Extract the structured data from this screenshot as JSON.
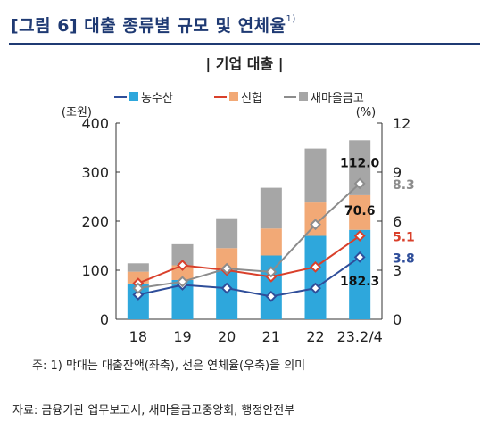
{
  "figure": {
    "title": "[그림 6] 대출 종류별 규모 및 연체율",
    "title_footnote": "1)",
    "note": "주:  1) 막대는 대출잔액(좌축), 선은 연체율(우축)을 의미",
    "source": "자료: 금융기관 업무보고서, 새마을금고중앙회, 행정안전부"
  },
  "chart_data": {
    "type": "bar",
    "subtitle": "| 기업 대출 |",
    "categories": [
      "18",
      "19",
      "20",
      "21",
      "22",
      "23.2/4"
    ],
    "left_axis": {
      "unit": "(조원)",
      "min": 0,
      "max": 400,
      "ticks": [
        0,
        100,
        200,
        300,
        400
      ]
    },
    "right_axis": {
      "unit": "(%)",
      "min": 0,
      "max": 12,
      "ticks": [
        0,
        3,
        6,
        9,
        12
      ]
    },
    "stacked_bars": [
      {
        "name": "농수산",
        "color": "#2ea7dc",
        "values": [
          73,
          80,
          100,
          130,
          170,
          182.3
        ]
      },
      {
        "name": "신협",
        "color": "#f2a976",
        "values": [
          24,
          30,
          45,
          55,
          68,
          70.6
        ]
      },
      {
        "name": "새마을금고",
        "color": "#a6a6a6",
        "values": [
          17,
          43,
          61,
          83,
          110,
          112.0
        ]
      }
    ],
    "lines": [
      {
        "name": "농수산",
        "color": "#2f4e9a",
        "values": [
          1.5,
          2.1,
          1.9,
          1.4,
          1.9,
          3.8
        ]
      },
      {
        "name": "신협",
        "color": "#d9402b",
        "values": [
          2.2,
          3.3,
          3.0,
          2.6,
          3.2,
          5.1
        ]
      },
      {
        "name": "새마을금고",
        "color": "#8c8c8c",
        "values": [
          1.9,
          2.3,
          3.1,
          2.9,
          5.8,
          8.3
        ]
      }
    ],
    "bar_labels": [
      {
        "series": "농수산",
        "text": "182.3"
      },
      {
        "series": "신협",
        "text": "70.6"
      },
      {
        "series": "새마을금고",
        "text": "112.0"
      }
    ],
    "line_labels": [
      {
        "series": "농수산",
        "text": "3.8"
      },
      {
        "series": "신협",
        "text": "5.1"
      },
      {
        "series": "새마을금고",
        "text": "8.3"
      }
    ],
    "legend": [
      "농수산",
      "신협",
      "새마을금고"
    ],
    "legend_position": "top"
  }
}
